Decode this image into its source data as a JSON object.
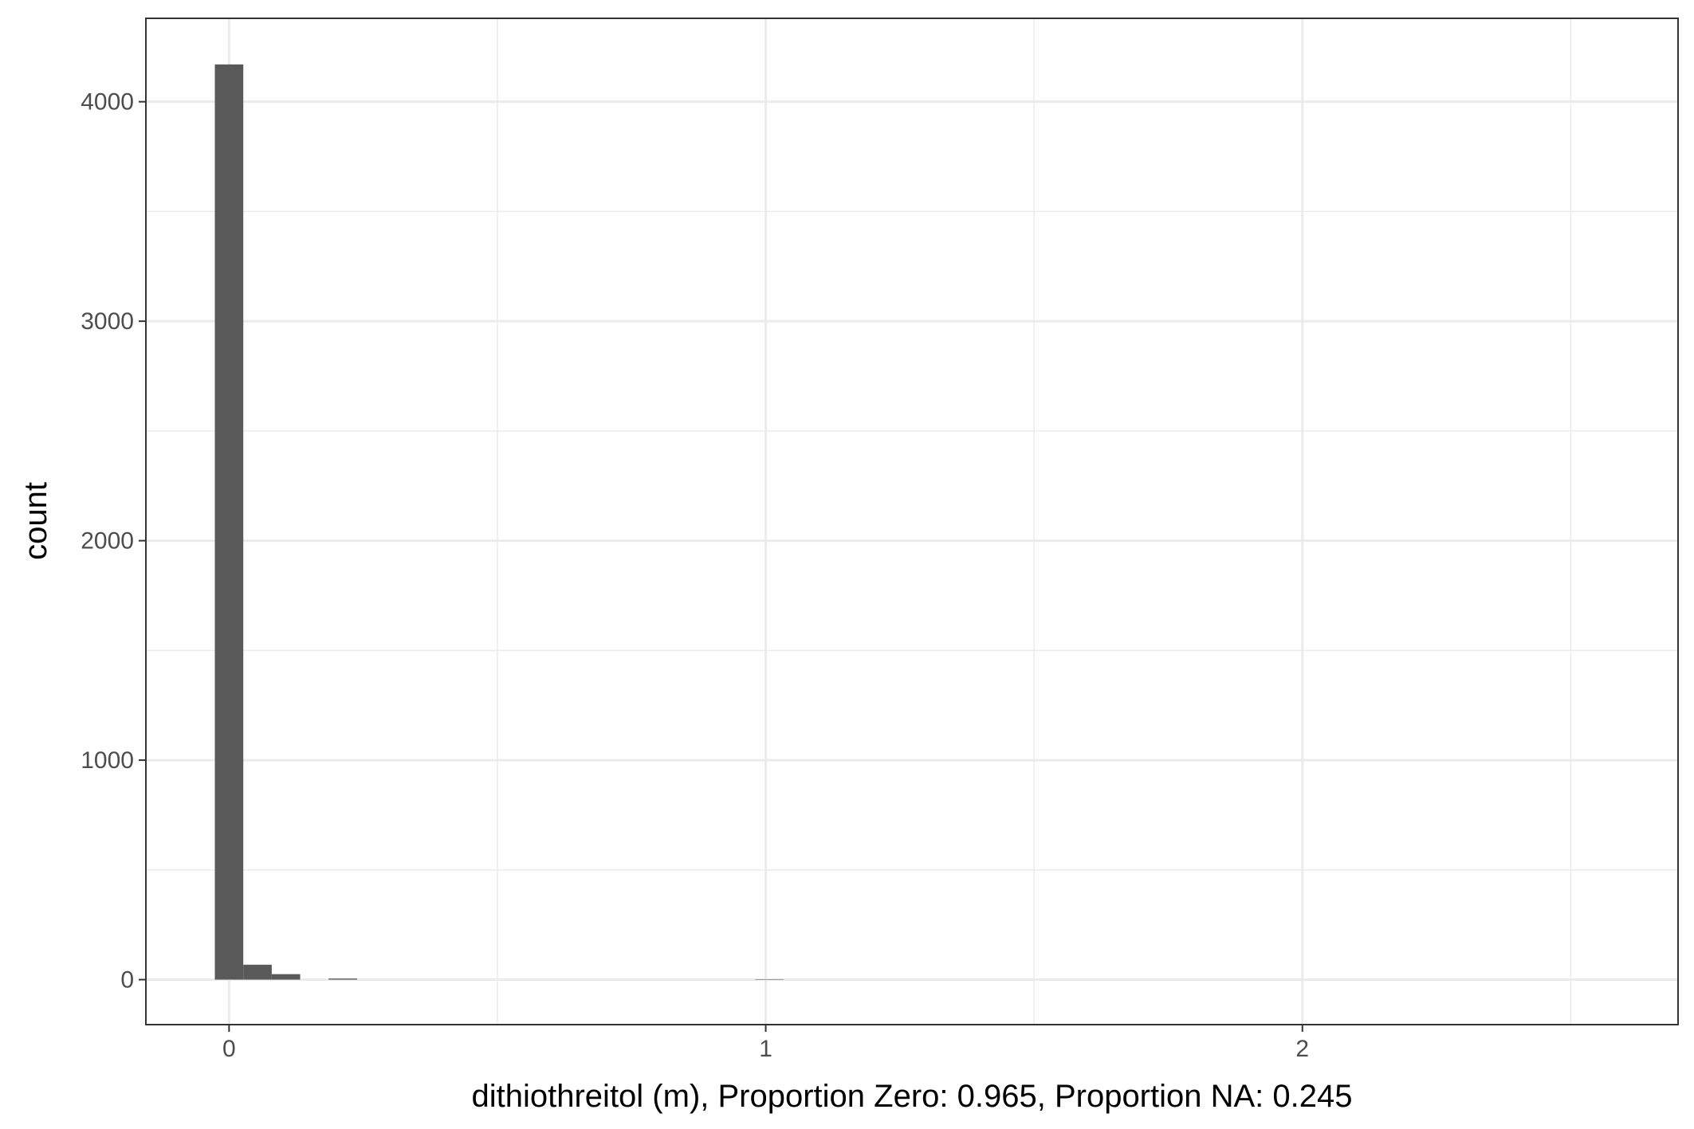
{
  "chart_data": {
    "type": "bar",
    "subtype": "histogram",
    "xlabel": "dithiothreitol (m), Proportion Zero: 0.965, Proportion NA: 0.245",
    "ylabel": "count",
    "xlim": [
      -0.155,
      2.7
    ],
    "ylim": [
      -205,
      4380
    ],
    "x_ticks": [
      0,
      1,
      2
    ],
    "x_tick_labels": [
      "0",
      "1",
      "2"
    ],
    "y_ticks": [
      0,
      1000,
      2000,
      3000,
      4000
    ],
    "y_tick_labels": [
      "0",
      "1000",
      "2000",
      "3000",
      "4000"
    ],
    "x_minor_gridlines": [
      0.5,
      1.5,
      2.5
    ],
    "y_minor_gridlines": [
      500,
      1500,
      2500,
      3500
    ],
    "grid": true,
    "bar_color": "#595959",
    "bins": [
      {
        "x0": -0.0265,
        "x1": 0.0265,
        "count": 4170
      },
      {
        "x0": 0.0265,
        "x1": 0.0795,
        "count": 68
      },
      {
        "x0": 0.0795,
        "x1": 0.1325,
        "count": 25
      },
      {
        "x0": 0.1855,
        "x1": 0.2385,
        "count": 5
      },
      {
        "x0": 0.9805,
        "x1": 1.0335,
        "count": 2
      }
    ]
  }
}
